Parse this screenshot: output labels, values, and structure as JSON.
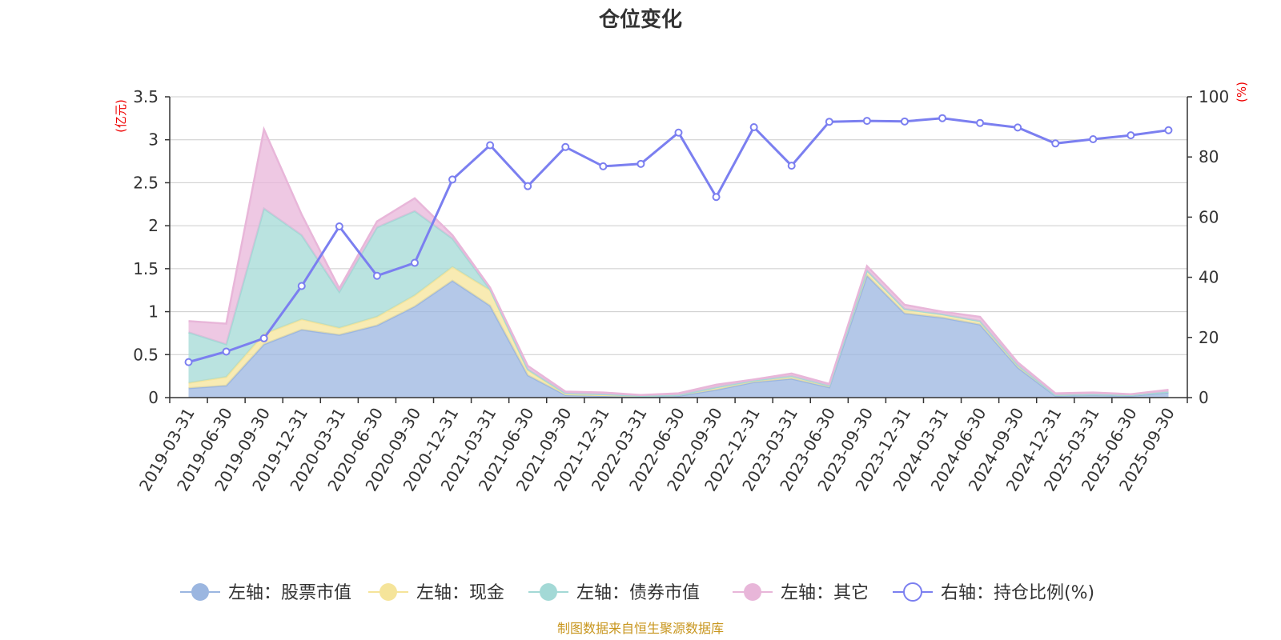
{
  "chart_data": {
    "type": "area",
    "title": "仓位变化",
    "left_axis_unit": "(亿元)",
    "right_axis_unit": "(%)",
    "left_ylim": [
      0,
      3.5
    ],
    "left_ticks": [
      "0",
      "0.5",
      "1",
      "1.5",
      "2",
      "2.5",
      "3",
      "3.5"
    ],
    "right_ylim": [
      0,
      100
    ],
    "right_ticks": [
      "0",
      "20",
      "40",
      "60",
      "80",
      "100"
    ],
    "stacked": true,
    "grid": true,
    "legend_position": "bottom",
    "categories": [
      "2019-03-31",
      "2019-06-30",
      "2019-09-30",
      "2019-12-31",
      "2020-03-31",
      "2020-06-30",
      "2020-09-30",
      "2020-12-31",
      "2021-03-31",
      "2021-06-30",
      "2021-09-30",
      "2021-12-31",
      "2022-03-31",
      "2022-06-30",
      "2022-09-30",
      "2022-12-31",
      "2023-03-31",
      "2023-06-30",
      "2023-09-30",
      "2023-12-31",
      "2024-03-31",
      "2024-06-30",
      "2024-09-30",
      "2024-12-31",
      "2025-03-31",
      "2025-06-30",
      "2025-09-30"
    ],
    "series": [
      {
        "name": "左轴：股票市值",
        "axis": "left",
        "color": "#9bb6e0",
        "values": [
          0.11,
          0.14,
          0.62,
          0.79,
          0.73,
          0.84,
          1.06,
          1.36,
          1.07,
          0.26,
          0.03,
          0.02,
          0.01,
          0.02,
          0.09,
          0.18,
          0.22,
          0.12,
          1.42,
          0.98,
          0.93,
          0.85,
          0.35,
          0.02,
          0.03,
          0.02,
          0.06
        ]
      },
      {
        "name": "左轴：现金",
        "axis": "left",
        "color": "#f5e49a",
        "values": [
          0.06,
          0.1,
          0.12,
          0.12,
          0.08,
          0.1,
          0.13,
          0.16,
          0.18,
          0.06,
          0.01,
          0.01,
          0.01,
          0.01,
          0.03,
          0.02,
          0.03,
          0.02,
          0.06,
          0.05,
          0.04,
          0.04,
          0.03,
          0.01,
          0.01,
          0.01,
          0.01
        ]
      },
      {
        "name": "左轴：债券市值",
        "axis": "left",
        "color": "#a3d9d6",
        "values": [
          0.59,
          0.38,
          1.46,
          0.98,
          0.42,
          1.04,
          0.98,
          0.33,
          0.01,
          0.01,
          0.01,
          0.01,
          0.0,
          0.0,
          0.0,
          0.0,
          0.0,
          0.0,
          0.0,
          0.0,
          0.0,
          0.0,
          0.0,
          0.0,
          0.0,
          0.0,
          0.0
        ]
      },
      {
        "name": "左轴：其它",
        "axis": "left",
        "color": "#e8b6d9",
        "values": [
          0.13,
          0.24,
          0.92,
          0.24,
          0.04,
          0.07,
          0.15,
          0.04,
          0.02,
          0.04,
          0.02,
          0.02,
          0.01,
          0.02,
          0.03,
          0.01,
          0.03,
          0.02,
          0.05,
          0.05,
          0.03,
          0.05,
          0.03,
          0.02,
          0.02,
          0.01,
          0.02
        ]
      },
      {
        "name": "右轴：持仓比例(%)",
        "axis": "right",
        "type": "line",
        "color": "#7b7ff0",
        "values": [
          11.8,
          15.3,
          19.7,
          37.1,
          56.9,
          40.5,
          44.8,
          72.5,
          83.9,
          70.3,
          83.3,
          76.9,
          77.7,
          88.1,
          66.7,
          89.9,
          77.1,
          91.7,
          92.0,
          91.8,
          92.9,
          91.3,
          89.8,
          84.5,
          85.9,
          87.2,
          88.9
        ]
      }
    ],
    "source": "制图数据来自恒生聚源数据库"
  }
}
